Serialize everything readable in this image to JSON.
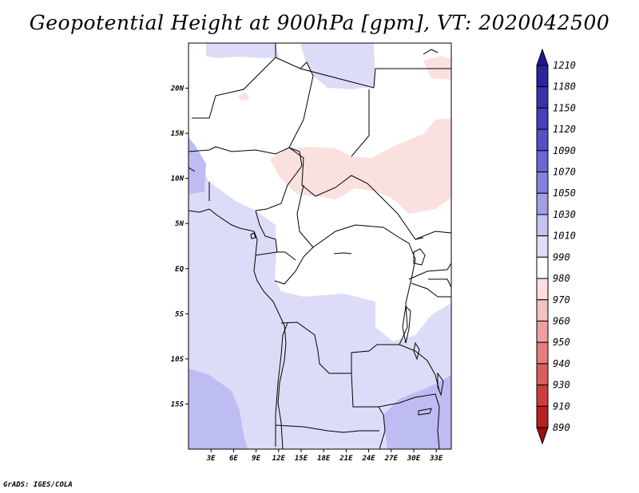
{
  "title": "Geopotential Height at 900hPa [gpm], VT: 2020042500",
  "footer": "GrADS: IGES/COLA",
  "map": {
    "lat_labels": [
      "20N",
      "15N",
      "10N",
      "5N",
      "EQ",
      "5S",
      "10S",
      "15S"
    ],
    "lon_labels": [
      "3E",
      "6E",
      "9E",
      "12E",
      "15E",
      "18E",
      "21E",
      "24E",
      "27E",
      "30E",
      "33E"
    ],
    "lat_range": [
      -20,
      25
    ],
    "lon_range": [
      0,
      35
    ]
  },
  "colorbar": {
    "levels": [
      "1210",
      "1180",
      "1150",
      "1120",
      "1090",
      "1070",
      "1050",
      "1030",
      "1010",
      "990",
      "980",
      "970",
      "960",
      "950",
      "940",
      "930",
      "910",
      "890"
    ],
    "colors": [
      "#1f1a8c",
      "#2a259c",
      "#3833ab",
      "#4640b9",
      "#5550c6",
      "#6a66d2",
      "#8481dd",
      "#a29fe8",
      "#c3c2f2",
      "#dedef8",
      "#ffffff",
      "#fbdede",
      "#f5c0c0",
      "#eea0a0",
      "#e57f7f",
      "#db5e5e",
      "#cf3d3d",
      "#b82020",
      "#9a1010"
    ]
  }
}
